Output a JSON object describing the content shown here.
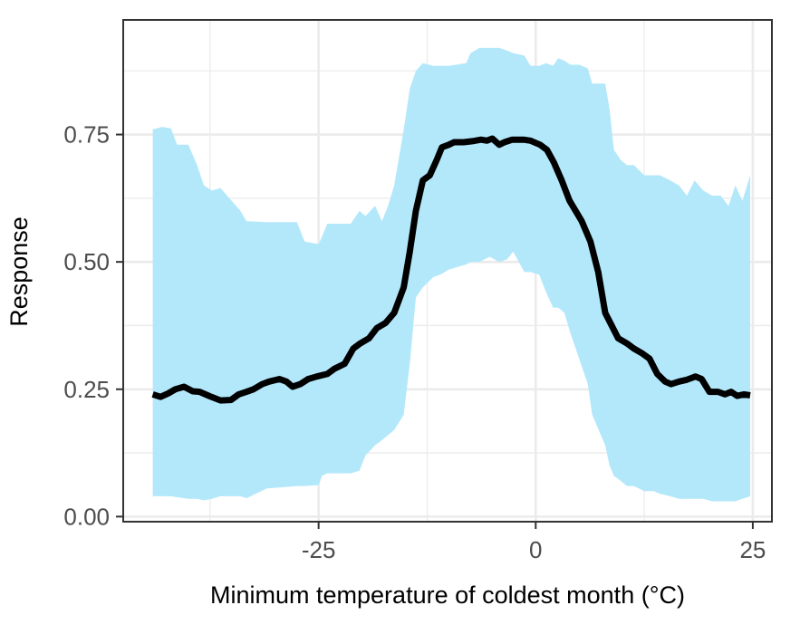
{
  "chart_data": {
    "type": "line",
    "title": "",
    "xlabel": "Minimum temperature of coldest month (°C)",
    "ylabel": "Response",
    "xlim": [
      -47.5,
      27.2
    ],
    "ylim": [
      -0.01,
      0.975
    ],
    "x_ticks": [
      -25,
      0,
      25
    ],
    "x_tick_labels": [
      "-25",
      "0",
      "25"
    ],
    "y_ticks": [
      0.0,
      0.25,
      0.5,
      0.75
    ],
    "y_tick_labels": [
      "0.00",
      "0.25",
      "0.50",
      "0.75"
    ],
    "x_minor_gridlines": [
      -37.5,
      -12.5,
      12.5
    ],
    "y_minor_gridlines": [
      0.125,
      0.375,
      0.625,
      0.875
    ],
    "grid": true,
    "legend": "none",
    "colors": {
      "line": "#000000",
      "band": "#b3e8fb",
      "grid": "#ebebeb",
      "frame": "#333333"
    },
    "series": [
      {
        "type": "line",
        "x": [
          -44.1,
          -43.2,
          -42.3,
          -41.5,
          -40.5,
          -39.5,
          -38.7,
          -37.5,
          -36.3,
          -35.1,
          -34.2,
          -33.3,
          -32.5,
          -31.5,
          -30.7,
          -29.5,
          -28.7,
          -28.0,
          -27.1,
          -26.2,
          -25.2,
          -24.0,
          -23.2,
          -22.0,
          -21.0,
          -20.2,
          -19.2,
          -18.3,
          -17.3,
          -16.3,
          -15.2,
          -14.5,
          -13.8,
          -13.0,
          -12.2,
          -11.4,
          -10.8,
          -10.0,
          -9.4,
          -8.3,
          -7.3,
          -6.3,
          -5.6,
          -5.0,
          -4.2,
          -3.6,
          -2.7,
          -1.4,
          -0.6,
          0.5,
          1.3,
          2.1,
          3.0,
          3.9,
          4.6,
          5.3,
          6.3,
          7.2,
          8.0,
          8.6,
          9.5,
          10.5,
          11.3,
          12.3,
          13.1,
          14.0,
          14.9,
          15.6,
          16.5,
          17.3,
          18.4,
          19.1,
          20.0,
          21.0,
          21.8,
          22.5,
          23.2,
          24.0,
          24.7
        ],
        "y": [
          0.24,
          0.235,
          0.242,
          0.25,
          0.255,
          0.246,
          0.245,
          0.236,
          0.228,
          0.229,
          0.24,
          0.245,
          0.25,
          0.26,
          0.265,
          0.27,
          0.265,
          0.255,
          0.26,
          0.27,
          0.275,
          0.28,
          0.29,
          0.3,
          0.33,
          0.34,
          0.35,
          0.37,
          0.38,
          0.4,
          0.45,
          0.52,
          0.6,
          0.66,
          0.67,
          0.7,
          0.725,
          0.73,
          0.735,
          0.735,
          0.737,
          0.74,
          0.738,
          0.742,
          0.73,
          0.735,
          0.74,
          0.74,
          0.738,
          0.73,
          0.72,
          0.695,
          0.66,
          0.62,
          0.6,
          0.58,
          0.54,
          0.48,
          0.4,
          0.38,
          0.35,
          0.34,
          0.33,
          0.32,
          0.31,
          0.28,
          0.265,
          0.26,
          0.265,
          0.268,
          0.275,
          0.27,
          0.245,
          0.245,
          0.24,
          0.245,
          0.237,
          0.24,
          0.238
        ]
      },
      {
        "type": "band",
        "x": [
          -44.1,
          -43.0,
          -42.0,
          -41.3,
          -40.0,
          -39.0,
          -38.2,
          -37.3,
          -36.3,
          -34.0,
          -33.3,
          -31.0,
          -27.5,
          -26.6,
          -25.0,
          -24.6,
          -24.0,
          -21.3,
          -20.3,
          -19.6,
          -18.5,
          -17.7,
          -17.0,
          -16.3,
          -15.2,
          -14.5,
          -13.8,
          -13.0,
          -11.8,
          -11.0,
          -10.0,
          -8.0,
          -7.5,
          -7.0,
          -6.5,
          -5.3,
          -4.2,
          -3.3,
          -2.6,
          -1.3,
          -0.6,
          0.4,
          1.2,
          2.0,
          2.6,
          3.3,
          4.0,
          5.0,
          6.0,
          6.5,
          7.0,
          7.5,
          8.0,
          8.5,
          9.0,
          9.8,
          10.5,
          11.3,
          12.5,
          13.6,
          14.3,
          15.5,
          16.5,
          17.4,
          18.3,
          19.3,
          20.3,
          21.3,
          22.2,
          23.0,
          23.8,
          24.7
        ],
        "upper": [
          0.76,
          0.765,
          0.762,
          0.73,
          0.73,
          0.69,
          0.65,
          0.64,
          0.645,
          0.6,
          0.58,
          0.578,
          0.578,
          0.54,
          0.535,
          0.55,
          0.575,
          0.575,
          0.6,
          0.59,
          0.61,
          0.58,
          0.61,
          0.65,
          0.76,
          0.84,
          0.875,
          0.89,
          0.885,
          0.885,
          0.885,
          0.89,
          0.91,
          0.915,
          0.92,
          0.92,
          0.92,
          0.915,
          0.91,
          0.905,
          0.885,
          0.885,
          0.89,
          0.885,
          0.9,
          0.895,
          0.887,
          0.887,
          0.88,
          0.85,
          0.85,
          0.85,
          0.85,
          0.8,
          0.72,
          0.7,
          0.69,
          0.69,
          0.67,
          0.67,
          0.67,
          0.66,
          0.65,
          0.63,
          0.66,
          0.64,
          0.63,
          0.63,
          0.61,
          0.65,
          0.62,
          0.67
        ],
        "lower": [
          0.04,
          0.04,
          0.04,
          0.038,
          0.035,
          0.035,
          0.032,
          0.035,
          0.04,
          0.04,
          0.036,
          0.055,
          0.06,
          0.06,
          0.062,
          0.08,
          0.085,
          0.085,
          0.09,
          0.12,
          0.14,
          0.15,
          0.16,
          0.17,
          0.2,
          0.3,
          0.43,
          0.45,
          0.47,
          0.475,
          0.485,
          0.495,
          0.5,
          0.5,
          0.5,
          0.51,
          0.5,
          0.505,
          0.52,
          0.48,
          0.48,
          0.475,
          0.44,
          0.41,
          0.41,
          0.4,
          0.36,
          0.31,
          0.26,
          0.2,
          0.18,
          0.16,
          0.14,
          0.1,
          0.08,
          0.07,
          0.06,
          0.06,
          0.05,
          0.05,
          0.045,
          0.04,
          0.035,
          0.035,
          0.035,
          0.035,
          0.03,
          0.03,
          0.03,
          0.03,
          0.035,
          0.04
        ]
      }
    ]
  }
}
